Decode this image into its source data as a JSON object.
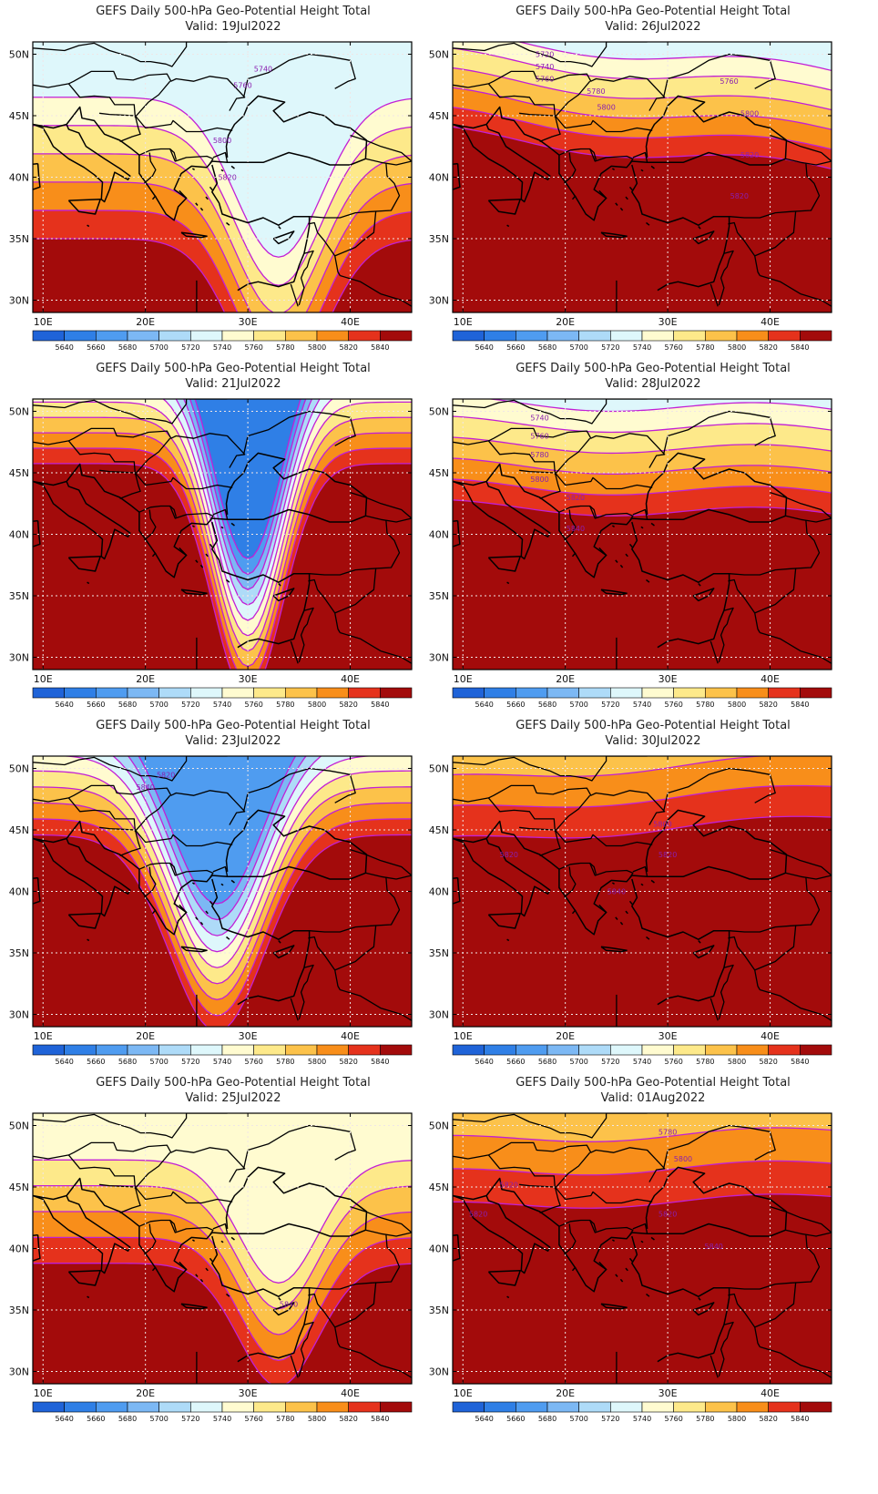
{
  "figure": {
    "title": "GEFS Daily 500-hPa Geo-Potential Height Total",
    "valid_prefix": "Valid:",
    "colorbar": {
      "labels": [
        "5640",
        "5660",
        "5680",
        "5700",
        "5720",
        "5740",
        "5760",
        "5780",
        "5800",
        "5820",
        "5840"
      ],
      "colors": [
        "#1f63d8",
        "#2f7fe6",
        "#4f9cf0",
        "#7cb8f4",
        "#aedbf8",
        "#def7fb",
        "#fffbd0",
        "#fde98a",
        "#fcc24a",
        "#f88e1a",
        "#e5321c",
        "#a30b0b"
      ]
    },
    "axes": {
      "x_ticks": [
        "10E",
        "20E",
        "30E",
        "40E"
      ],
      "y_ticks": [
        "50N",
        "45N",
        "40N",
        "35N",
        "30N"
      ]
    }
  },
  "panels": [
    {
      "valid": "19Jul2022",
      "contour_labels": [
        "5740",
        "5760",
        "5800",
        "5820"
      ]
    },
    {
      "valid": "26Jul2022",
      "contour_labels": [
        "5720",
        "5740",
        "5760",
        "5760",
        "5780",
        "5800",
        "5800",
        "5820",
        "5820"
      ]
    },
    {
      "valid": "21Jul2022",
      "contour_labels": []
    },
    {
      "valid": "28Jul2022",
      "contour_labels": [
        "5740",
        "5760",
        "5780",
        "5800",
        "5820",
        "5840"
      ]
    },
    {
      "valid": "23Jul2022",
      "contour_labels": [
        "5820",
        "5840"
      ]
    },
    {
      "valid": "30Jul2022",
      "contour_labels": [
        "5800",
        "5820",
        "5820",
        "5840"
      ]
    },
    {
      "valid": "25Jul2022",
      "contour_labels": [
        "5840"
      ]
    },
    {
      "valid": "01Aug2022",
      "contour_labels": [
        "5780",
        "5800",
        "5820",
        "5820",
        "5820",
        "5840"
      ]
    }
  ]
}
